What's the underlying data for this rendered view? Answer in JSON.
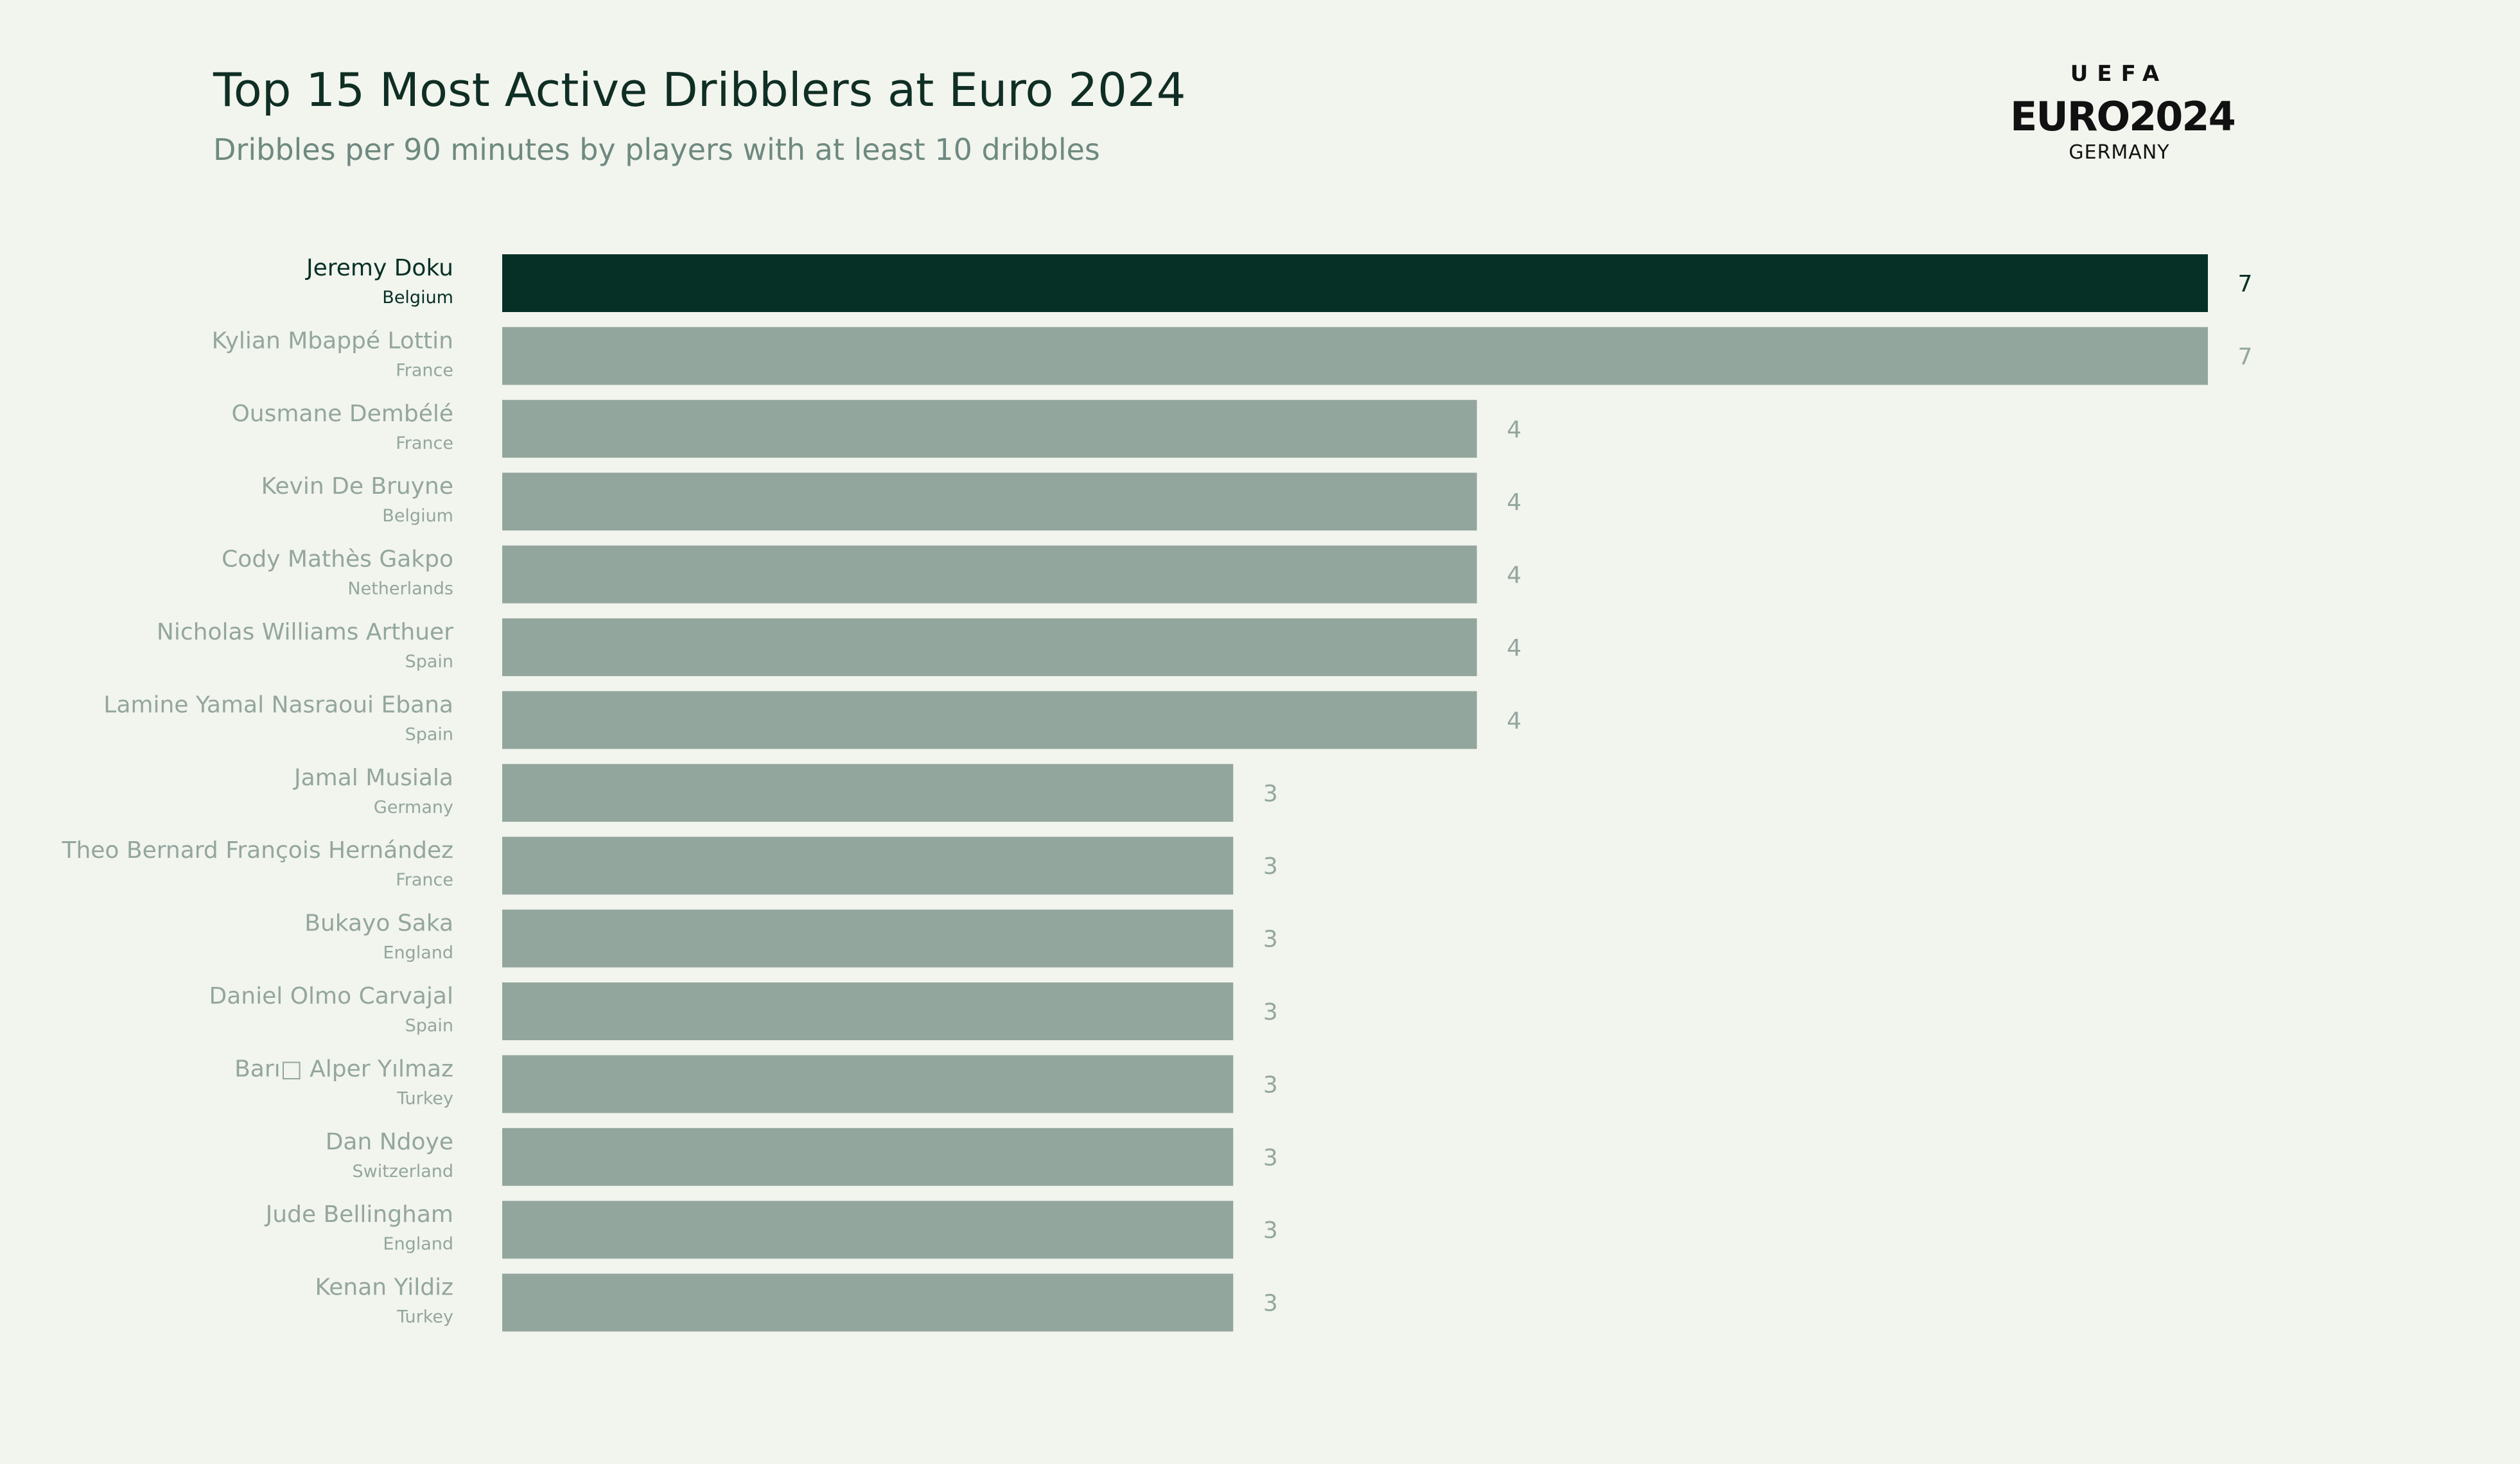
{
  "page": {
    "title": "Top 15 Most Active Dribblers at Euro 2024",
    "subtitle": "Dribbles per 90 minutes by players with at least 10 dribbles"
  },
  "logo": {
    "top_text": "UEFA",
    "main_text": "EURO2024",
    "country_text": "GERMANY"
  },
  "colors": {
    "background": "#f2f4ee",
    "highlight_bar": "#063026",
    "bar": "#93a69d",
    "highlight_text": "#063026",
    "label_text": "#93a69d",
    "title": "#0f2e24",
    "subtitle": "#6e8a80"
  },
  "chart_data": {
    "type": "bar",
    "orientation": "horizontal",
    "title": "Top 15 Most Active Dribblers at Euro 2024",
    "subtitle": "Dribbles per 90 minutes by players with at least 10 dribbles",
    "xlim": [
      0,
      7
    ],
    "grid": false,
    "legend": "none",
    "categories": [
      "Jeremy Doku",
      "Kylian Mbappé Lottin",
      "Ousmane Dembélé",
      "Kevin De Bruyne",
      "Cody Mathès Gakpo",
      "Nicholas Williams Arthuer",
      "Lamine Yamal Nasraoui Ebana",
      "Jamal Musiala",
      "Theo Bernard François Hernández",
      "Bukayo Saka",
      "Daniel Olmo Carvajal",
      "Barı□ Alper Yılmaz",
      "Dan Ndoye",
      "Jude Bellingham",
      "Kenan Yildiz"
    ],
    "countries": [
      "Belgium",
      "France",
      "France",
      "Belgium",
      "Netherlands",
      "Spain",
      "Spain",
      "Germany",
      "France",
      "England",
      "Spain",
      "Turkey",
      "Switzerland",
      "England",
      "Turkey"
    ],
    "values": [
      7,
      7,
      4,
      4,
      4,
      4,
      4,
      3,
      3,
      3,
      3,
      3,
      3,
      3,
      3
    ],
    "highlight_index": 0
  }
}
